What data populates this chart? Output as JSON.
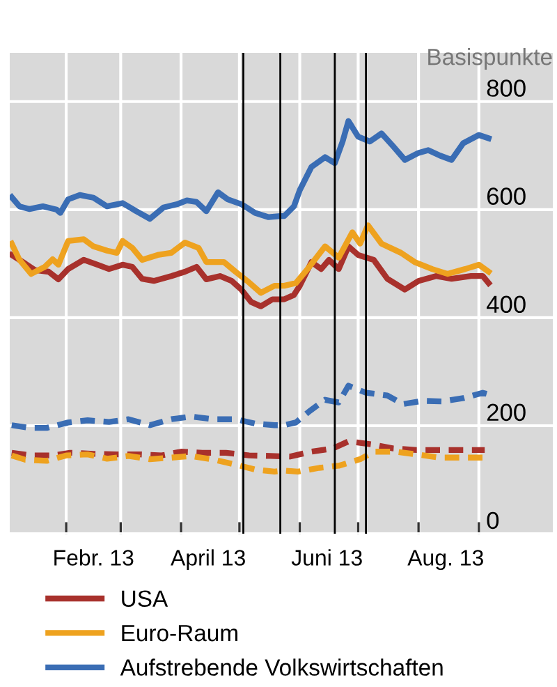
{
  "chart_data": {
    "type": "line",
    "ylabel": "Basispunkte",
    "xlim": [
      "2013-01-03",
      "2013-10-09"
    ],
    "ylim": [
      0,
      890
    ],
    "xticks": [
      {
        "value": "2013-02-01",
        "label": null
      },
      {
        "value": "2013-02-15",
        "label": "Febr. 13"
      },
      {
        "value": "2013-03-01",
        "label": null
      },
      {
        "value": "2013-04-01",
        "label": null
      },
      {
        "value": "2013-04-15",
        "label": "April 13"
      },
      {
        "value": "2013-05-01",
        "label": null
      },
      {
        "value": "2013-06-01",
        "label": null
      },
      {
        "value": "2013-06-15",
        "label": "Juni 13"
      },
      {
        "value": "2013-07-01",
        "label": null
      },
      {
        "value": "2013-08-01",
        "label": null
      },
      {
        "value": "2013-08-15",
        "label": "Aug. 13"
      },
      {
        "value": "2013-09-01",
        "label": null
      }
    ],
    "yticks": [
      0,
      200,
      400,
      600,
      800
    ],
    "grid": true,
    "legend": "bottom",
    "ref_lines": [
      {
        "axis": "x",
        "value": "2013-05-03",
        "color": "#000000"
      },
      {
        "axis": "x",
        "value": "2013-05-22",
        "color": "#000000"
      },
      {
        "axis": "x",
        "value": "2013-06-19",
        "color": "#000000"
      },
      {
        "axis": "x",
        "value": "2013-07-05",
        "color": "#000000"
      }
    ],
    "series": [
      {
        "name": "USA",
        "color": "#a8312c",
        "line_style": "solid",
        "x": [
          "2013-01-04",
          "2013-01-11",
          "2013-01-16",
          "2013-01-23",
          "2013-01-28",
          "2013-02-02",
          "2013-02-10",
          "2013-02-17",
          "2013-02-23",
          "2013-03-02",
          "2013-03-07",
          "2013-03-12",
          "2013-03-18",
          "2013-03-27",
          "2013-04-03",
          "2013-04-09",
          "2013-04-14",
          "2013-04-21",
          "2013-04-27",
          "2013-05-02",
          "2013-05-07",
          "2013-05-12",
          "2013-05-18",
          "2013-05-24",
          "2013-05-29",
          "2013-06-01",
          "2013-06-07",
          "2013-06-12",
          "2013-06-16",
          "2013-06-21",
          "2013-06-26",
          "2013-07-01",
          "2013-07-09",
          "2013-07-16",
          "2013-07-25",
          "2013-08-01",
          "2013-08-10",
          "2013-08-18",
          "2013-08-28",
          "2013-09-03",
          "2013-09-06"
        ],
        "values": [
          516,
          500,
          488,
          485,
          471,
          490,
          507,
          498,
          490,
          498,
          494,
          472,
          468,
          477,
          485,
          494,
          471,
          477,
          468,
          452,
          429,
          421,
          434,
          434,
          442,
          459,
          503,
          490,
          507,
          490,
          532,
          516,
          507,
          472,
          452,
          468,
          477,
          472,
          477,
          477,
          464
        ]
      },
      {
        "name": "Euro-Raum",
        "color": "#eea21f",
        "line_style": "solid",
        "x": [
          "2013-01-04",
          "2013-01-08",
          "2013-01-14",
          "2013-01-21",
          "2013-01-25",
          "2013-01-28",
          "2013-02-02",
          "2013-02-10",
          "2013-02-15",
          "2013-02-22",
          "2013-02-27",
          "2013-03-02",
          "2013-03-07",
          "2013-03-12",
          "2013-03-20",
          "2013-03-27",
          "2013-04-03",
          "2013-04-10",
          "2013-04-14",
          "2013-04-23",
          "2013-04-29",
          "2013-05-05",
          "2013-05-12",
          "2013-05-19",
          "2013-05-24",
          "2013-05-30",
          "2013-06-05",
          "2013-06-14",
          "2013-06-21",
          "2013-06-28",
          "2013-07-02",
          "2013-07-06",
          "2013-07-13",
          "2013-07-23",
          "2013-07-30",
          "2013-08-08",
          "2013-08-16",
          "2013-08-25",
          "2013-09-01",
          "2013-09-06"
        ],
        "values": [
          537,
          507,
          481,
          494,
          508,
          498,
          542,
          545,
          532,
          524,
          520,
          542,
          529,
          507,
          516,
          520,
          539,
          529,
          503,
          503,
          485,
          468,
          446,
          459,
          459,
          464,
          490,
          532,
          511,
          558,
          537,
          571,
          537,
          520,
          503,
          490,
          481,
          490,
          498,
          485
        ]
      },
      {
        "name": "Aufstrebende Volkswirtschaften",
        "color": "#3a6db4",
        "line_style": "solid",
        "x": [
          "2013-01-04",
          "2013-01-08",
          "2013-01-13",
          "2013-01-20",
          "2013-01-27",
          "2013-01-29",
          "2013-02-02",
          "2013-02-08",
          "2013-02-15",
          "2013-02-22",
          "2013-03-02",
          "2013-03-09",
          "2013-03-16",
          "2013-03-23",
          "2013-03-30",
          "2013-04-04",
          "2013-04-09",
          "2013-04-14",
          "2013-04-20",
          "2013-04-25",
          "2013-05-02",
          "2013-05-09",
          "2013-05-16",
          "2013-05-22",
          "2013-05-24",
          "2013-05-29",
          "2013-06-01",
          "2013-06-07",
          "2013-06-14",
          "2013-06-19",
          "2013-06-23",
          "2013-06-26",
          "2013-07-01",
          "2013-07-07",
          "2013-07-13",
          "2013-07-19",
          "2013-07-25",
          "2013-08-01",
          "2013-08-06",
          "2013-08-12",
          "2013-08-18",
          "2013-08-24",
          "2013-09-01",
          "2013-09-06"
        ],
        "values": [
          623,
          606,
          601,
          606,
          600,
          594,
          619,
          627,
          622,
          606,
          612,
          597,
          583,
          604,
          610,
          617,
          614,
          597,
          632,
          619,
          610,
          594,
          586,
          588,
          588,
          606,
          636,
          679,
          697,
          686,
          726,
          764,
          735,
          726,
          741,
          717,
          692,
          705,
          710,
          700,
          692,
          723,
          738,
          732
        ]
      },
      {
        "color": "#a8312c",
        "line_style": "dashed",
        "x": [
          "2013-01-04",
          "2013-01-14",
          "2013-01-25",
          "2013-02-03",
          "2013-02-15",
          "2013-02-27",
          "2013-03-11",
          "2013-03-22",
          "2013-04-01",
          "2013-04-12",
          "2013-04-24",
          "2013-05-06",
          "2013-05-17",
          "2013-05-27",
          "2013-06-07",
          "2013-06-18",
          "2013-06-26",
          "2013-07-09",
          "2013-07-19",
          "2013-07-31",
          "2013-08-11",
          "2013-08-23",
          "2013-09-04"
        ],
        "values": [
          150,
          145,
          145,
          150,
          148,
          147,
          147,
          145,
          152,
          150,
          150,
          145,
          144,
          143,
          152,
          158,
          171,
          165,
          158,
          155,
          155,
          155,
          155
        ]
      },
      {
        "color": "#eea21f",
        "line_style": "dashed",
        "x": [
          "2013-01-04",
          "2013-01-11",
          "2013-01-22",
          "2013-02-01",
          "2013-02-12",
          "2013-02-22",
          "2013-03-05",
          "2013-03-16",
          "2013-03-27",
          "2013-04-06",
          "2013-04-18",
          "2013-04-29",
          "2013-05-09",
          "2013-05-19",
          "2013-05-24",
          "2013-05-31",
          "2013-06-11",
          "2013-06-21",
          "2013-07-02",
          "2013-07-09",
          "2013-07-20",
          "2013-07-31",
          "2013-08-12",
          "2013-08-23",
          "2013-09-03"
        ],
        "values": [
          145,
          137,
          135,
          145,
          147,
          139,
          144,
          138,
          141,
          144,
          137,
          128,
          119,
          115,
          117,
          115,
          122,
          126,
          138,
          152,
          152,
          147,
          141,
          141,
          141
        ]
      },
      {
        "color": "#3a6db4",
        "line_style": "dashed",
        "x": [
          "2013-01-04",
          "2013-01-13",
          "2013-01-22",
          "2013-02-02",
          "2013-02-12",
          "2013-02-23",
          "2013-03-05",
          "2013-03-16",
          "2013-03-27",
          "2013-04-06",
          "2013-04-18",
          "2013-04-29",
          "2013-05-09",
          "2013-05-19",
          "2013-05-24",
          "2013-05-30",
          "2013-06-06",
          "2013-06-14",
          "2013-06-21",
          "2013-06-26",
          "2013-07-05",
          "2013-07-16",
          "2013-07-24",
          "2013-08-03",
          "2013-08-13",
          "2013-08-24",
          "2013-09-03",
          "2013-09-05"
        ],
        "values": [
          201,
          196,
          196,
          206,
          210,
          207,
          212,
          201,
          212,
          217,
          212,
          212,
          204,
          201,
          201,
          206,
          227,
          248,
          243,
          274,
          261,
          256,
          240,
          246,
          245,
          251,
          261,
          259
        ]
      }
    ]
  }
}
